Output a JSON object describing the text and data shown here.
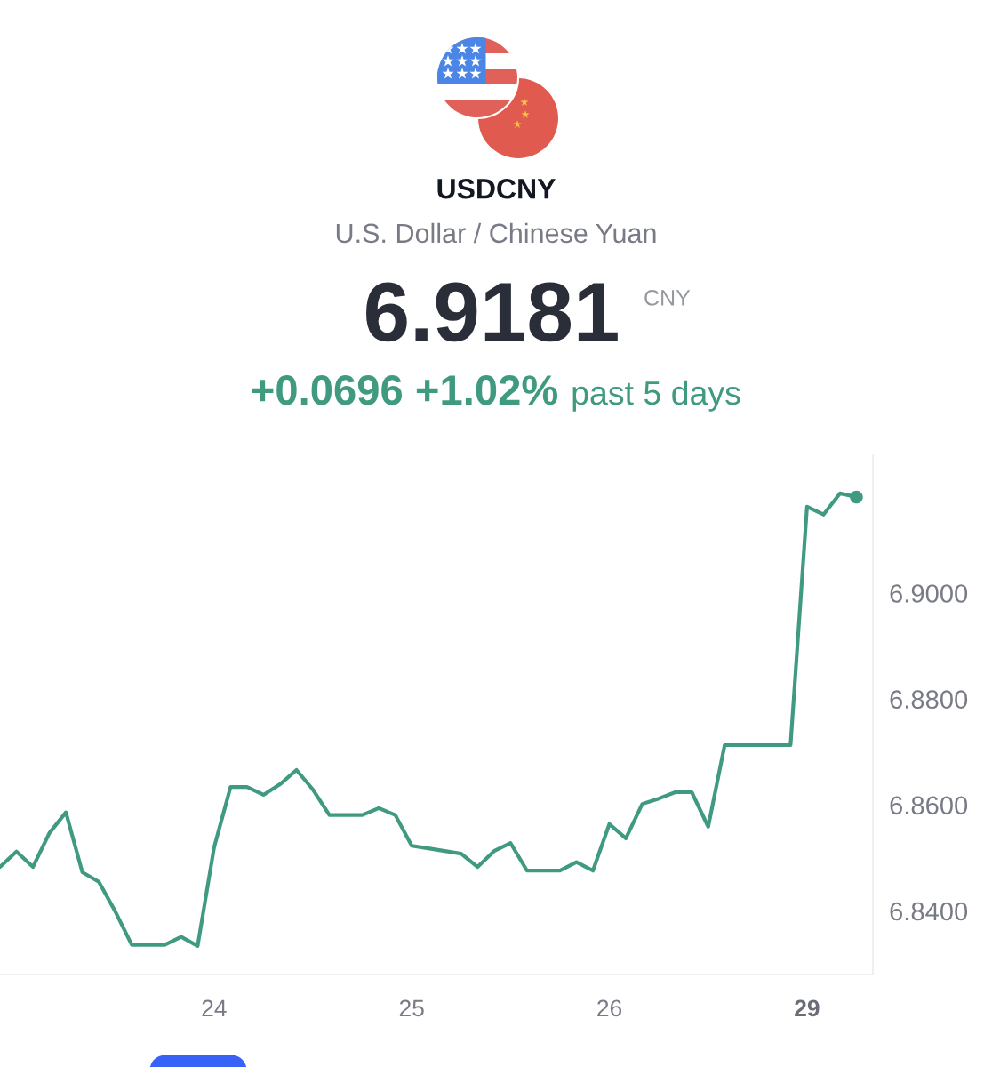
{
  "chart_data": {
    "type": "line",
    "title": "USDCNY",
    "subtitle": "U.S. Dollar / Chinese Yuan",
    "annotations": [
      "6.9181",
      "CNY",
      "+0.0696 +1.02%",
      "past 5 days"
    ],
    "categories": [
      null,
      null,
      null,
      null,
      null,
      null,
      null,
      null,
      null,
      null,
      null,
      null,
      null,
      "24",
      null,
      null,
      null,
      null,
      null,
      null,
      null,
      null,
      null,
      null,
      null,
      "25",
      null,
      null,
      null,
      null,
      null,
      null,
      null,
      null,
      null,
      null,
      null,
      "26",
      null,
      null,
      null,
      null,
      null,
      null,
      null,
      null,
      null,
      null,
      null,
      "29",
      null,
      null,
      null
    ],
    "series": [
      {
        "color": "#409a82",
        "values": [
          6.8483,
          6.8512,
          6.8483,
          6.8547,
          6.8586,
          6.8473,
          6.8455,
          6.8399,
          6.8336,
          6.8336,
          6.8336,
          6.8351,
          6.8334,
          6.852,
          6.8634,
          6.8634,
          6.8619,
          6.8639,
          6.8666,
          6.8629,
          6.8581,
          6.8581,
          6.8581,
          6.8594,
          6.8581,
          6.8523,
          6.8518,
          6.8513,
          6.8508,
          6.8483,
          6.8513,
          6.8528,
          6.8476,
          6.8476,
          6.8476,
          6.8492,
          6.8476,
          6.8564,
          6.8537,
          6.8602,
          6.8612,
          6.8624,
          6.8624,
          6.8559,
          6.8713,
          6.8713,
          6.8713,
          6.8713,
          6.8713,
          6.9163,
          6.9148,
          6.9188,
          6.9181
        ]
      },
      {
        "type": "scatter",
        "color": "#409a82",
        "marker": "circle",
        "values": [
          null,
          null,
          null,
          null,
          null,
          null,
          null,
          null,
          null,
          null,
          null,
          null,
          null,
          null,
          null,
          null,
          null,
          null,
          null,
          null,
          null,
          null,
          null,
          null,
          null,
          null,
          null,
          null,
          null,
          null,
          null,
          null,
          null,
          null,
          null,
          null,
          null,
          null,
          null,
          null,
          null,
          null,
          null,
          null,
          null,
          null,
          null,
          null,
          null,
          null,
          null,
          null,
          6.9181
        ]
      }
    ],
    "ylim": [
      6.828,
      6.926
    ],
    "yticks": [
      {
        "value": 6.84,
        "label": "6.8400"
      },
      {
        "value": 6.86,
        "label": "6.8600"
      },
      {
        "value": 6.88,
        "label": "6.8800"
      },
      {
        "value": 6.9,
        "label": "6.9000"
      }
    ]
  }
}
